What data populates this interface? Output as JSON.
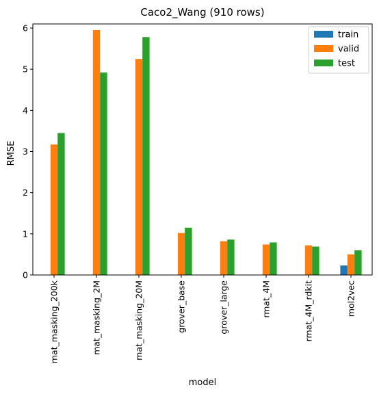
{
  "chart_data": {
    "type": "bar",
    "title": "Caco2_Wang (910 rows)",
    "xlabel": "model",
    "ylabel": "RMSE",
    "ylim": [
      0,
      6.1
    ],
    "yticks": [
      0,
      1,
      2,
      3,
      4,
      5,
      6
    ],
    "categories": [
      "mat_masking_200k",
      "mat_masking_2M",
      "mat_masking_20M",
      "grover_base",
      "grover_large",
      "rmat_4M",
      "rmat_4M_rdkit",
      "mol2vec"
    ],
    "series": [
      {
        "name": "train",
        "color": "#1f77b4",
        "values": [
          null,
          null,
          null,
          null,
          null,
          null,
          null,
          0.23
        ]
      },
      {
        "name": "valid",
        "color": "#ff7f0e",
        "values": [
          3.17,
          5.95,
          5.25,
          1.02,
          0.82,
          0.74,
          0.72,
          0.5
        ]
      },
      {
        "name": "test",
        "color": "#2ca02c",
        "values": [
          3.45,
          4.92,
          5.78,
          1.15,
          0.86,
          0.79,
          0.69,
          0.6
        ]
      }
    ],
    "legend_position": "top-right",
    "grid": false
  }
}
